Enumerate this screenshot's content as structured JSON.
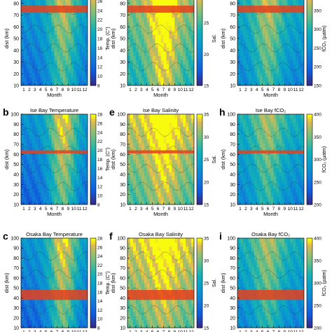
{
  "chart_data": [
    {
      "type": "heatmap",
      "letter": "",
      "title": "",
      "xlabel": "Month",
      "ylabel": "dist (km)",
      "cbar_label": "Temp. (C°)",
      "cbar_ticks": [
        "8",
        "10",
        "12",
        "14",
        "16",
        "18",
        "20",
        "22",
        "24",
        "26",
        "28"
      ],
      "cbar_range": [
        8,
        28
      ],
      "colormap": "parula",
      "x_ticks": [
        "1",
        "2",
        "3",
        "4",
        "5",
        "6",
        "7",
        "8",
        "9",
        "10",
        "11",
        "12"
      ],
      "y_ticks": [
        "10",
        "20",
        "30",
        "40",
        "50",
        "60",
        "70",
        "80",
        "90"
      ],
      "ylim": [
        10,
        90
      ],
      "highlight_band": [
        72,
        78
      ],
      "base": 0.35,
      "amp": 0.45,
      "peak": 8
    },
    {
      "type": "heatmap",
      "letter": "",
      "title": "",
      "xlabel": "Month",
      "ylabel": "dist (km)",
      "cbar_label": "Sal.",
      "cbar_ticks": [
        "15",
        "20",
        "25",
        "30"
      ],
      "cbar_range": [
        15,
        30
      ],
      "colormap": "parula",
      "x_ticks": [
        "1",
        "2",
        "3",
        "4",
        "5",
        "6",
        "7",
        "8",
        "9",
        "10",
        "11",
        "12"
      ],
      "y_ticks": [
        "10",
        "20",
        "30",
        "40",
        "50",
        "60",
        "70",
        "80",
        "90"
      ],
      "ylim": [
        10,
        90
      ],
      "highlight_band": [
        72,
        78
      ],
      "base": 0.7,
      "amp": 0.35,
      "peak": 7
    },
    {
      "type": "heatmap",
      "letter": "",
      "title": "",
      "xlabel": "Month",
      "ylabel": "dist (km)",
      "cbar_label": "fCO₂ (µatm)",
      "cbar_ticks": [
        "150",
        "200",
        "250",
        "300",
        "350",
        "400"
      ],
      "cbar_range": [
        150,
        400
      ],
      "colormap": "parula",
      "x_ticks": [
        "1",
        "2",
        "3",
        "4",
        "5",
        "6",
        "7",
        "8",
        "9",
        "10",
        "11",
        "12"
      ],
      "y_ticks": [
        "10",
        "20",
        "30",
        "40",
        "50",
        "60",
        "70",
        "80",
        "90"
      ],
      "ylim": [
        10,
        90
      ],
      "highlight_band": [
        72,
        78
      ],
      "base": 0.45,
      "amp": 0.35,
      "peak": 6
    },
    {
      "type": "heatmap",
      "letter": "b",
      "title": "Ise Bay Temperature",
      "xlabel": "Month",
      "ylabel": "dist (km)",
      "cbar_label": "Temp. (C°)",
      "cbar_ticks": [
        "8",
        "10",
        "12",
        "14",
        "16",
        "18",
        "20",
        "22",
        "24",
        "26",
        "28"
      ],
      "cbar_range": [
        8,
        28
      ],
      "colormap": "parula",
      "x_ticks": [
        "1",
        "2",
        "3",
        "4",
        "5",
        "6",
        "7",
        "8",
        "9",
        "10",
        "11",
        "12"
      ],
      "y_ticks": [
        "10",
        "20",
        "30",
        "40",
        "50",
        "60",
        "70",
        "80",
        "90",
        "100"
      ],
      "ylim": [
        10,
        100
      ],
      "highlight_band": [
        61,
        64
      ],
      "base": 0.3,
      "amp": 0.55,
      "peak": 8
    },
    {
      "type": "heatmap",
      "letter": "e",
      "title": "Ise Bay Salinity",
      "xlabel": "Month",
      "ylabel": "dist (km)",
      "cbar_label": "Sal.",
      "cbar_ticks": [
        "15",
        "20",
        "25",
        "30",
        "35"
      ],
      "cbar_range": [
        15,
        35
      ],
      "colormap": "parula",
      "x_ticks": [
        "1",
        "2",
        "3",
        "4",
        "5",
        "6",
        "7",
        "8",
        "9",
        "10",
        "11",
        "12"
      ],
      "y_ticks": [
        "10",
        "20",
        "30",
        "40",
        "50",
        "60",
        "70",
        "80",
        "90",
        "100"
      ],
      "ylim": [
        10,
        100
      ],
      "highlight_band": [
        61,
        64
      ],
      "base": 0.8,
      "amp": 0.2,
      "peak": 7
    },
    {
      "type": "heatmap",
      "letter": "h",
      "title": "Ise Bay fCO₂",
      "xlabel": "Month",
      "ylabel": "dist (km)",
      "cbar_label": "fCO₂ (µatm)",
      "cbar_ticks": [
        "200",
        "250",
        "300",
        "350",
        "400"
      ],
      "cbar_range": [
        200,
        400
      ],
      "colormap": "parula",
      "x_ticks": [
        "1",
        "2",
        "3",
        "4",
        "5",
        "6",
        "7",
        "8",
        "9",
        "10",
        "11",
        "12"
      ],
      "y_ticks": [
        "10",
        "20",
        "30",
        "40",
        "50",
        "60",
        "70",
        "80",
        "90",
        "100"
      ],
      "ylim": [
        10,
        100
      ],
      "highlight_band": [
        61,
        64
      ],
      "base": 0.45,
      "amp": 0.3,
      "peak": 6
    },
    {
      "type": "heatmap",
      "letter": "c",
      "title": "Osaka Bay Temperature",
      "xlabel": "Month",
      "ylabel": "dist (km)",
      "cbar_label": "Temp. (C°)",
      "cbar_ticks": [
        "8",
        "10",
        "12",
        "14",
        "16",
        "18",
        "20",
        "22",
        "24",
        "26",
        "28"
      ],
      "cbar_range": [
        8,
        28
      ],
      "colormap": "parula",
      "x_ticks": [
        "1",
        "2",
        "3",
        "4",
        "5",
        "6",
        "7",
        "8",
        "9",
        "10",
        "11",
        "12"
      ],
      "y_ticks": [
        "10",
        "20",
        "30",
        "40",
        "50",
        "60",
        "70",
        "80",
        "90",
        "100"
      ],
      "ylim": [
        10,
        100
      ],
      "highlight_band": [
        38,
        48
      ],
      "base": 0.3,
      "amp": 0.55,
      "peak": 8
    },
    {
      "type": "heatmap",
      "letter": "f",
      "title": "Osaka Bay Salinity",
      "xlabel": "Month",
      "ylabel": "dist (km)",
      "cbar_label": "Sal.",
      "cbar_ticks": [
        "15",
        "20",
        "25",
        "30",
        "35"
      ],
      "cbar_range": [
        15,
        35
      ],
      "colormap": "parula",
      "x_ticks": [
        "1",
        "2",
        "3",
        "4",
        "5",
        "6",
        "7",
        "8",
        "9",
        "10",
        "11",
        "12"
      ],
      "y_ticks": [
        "10",
        "20",
        "30",
        "40",
        "50",
        "60",
        "70",
        "80",
        "90",
        "100"
      ],
      "ylim": [
        10,
        100
      ],
      "highlight_band": [
        38,
        48
      ],
      "base": 0.82,
      "amp": 0.15,
      "peak": 7
    },
    {
      "type": "heatmap",
      "letter": "i",
      "title": "Osaka Bay fCO₂",
      "xlabel": "Month",
      "ylabel": "dist (km)",
      "cbar_label": "fCO₂ (µatm)",
      "cbar_ticks": [
        "200",
        "250",
        "300",
        "350",
        "400"
      ],
      "cbar_range": [
        200,
        400
      ],
      "colormap": "parula",
      "x_ticks": [
        "1",
        "2",
        "3",
        "4",
        "5",
        "6",
        "7",
        "8",
        "9",
        "10",
        "11",
        "12"
      ],
      "y_ticks": [
        "10",
        "20",
        "30",
        "40",
        "50",
        "60",
        "70",
        "80",
        "90",
        "100"
      ],
      "ylim": [
        10,
        100
      ],
      "highlight_band": [
        38,
        48
      ],
      "base": 0.45,
      "amp": 0.3,
      "peak": 6
    }
  ]
}
